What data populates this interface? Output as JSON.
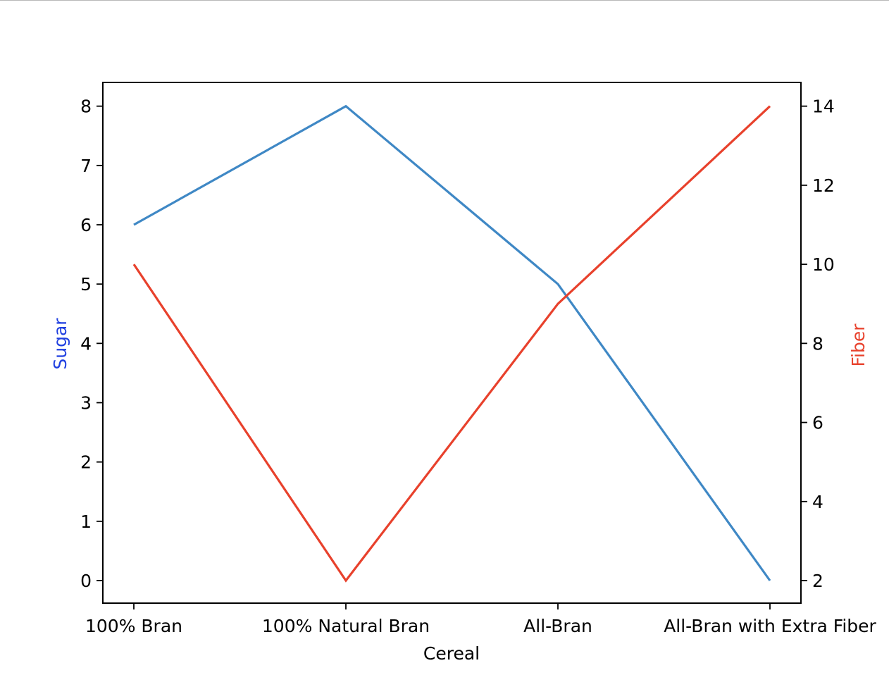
{
  "chart_data": {
    "type": "line",
    "categories": [
      "100% Bran",
      "100% Natural Bran",
      "All-Bran",
      "All-Bran with Extra Fiber"
    ],
    "xlabel": "Cereal",
    "series": [
      {
        "name": "Sugar",
        "axis": "left",
        "color": "#3f88c5",
        "values": [
          6,
          8,
          5,
          0
        ]
      },
      {
        "name": "Fiber",
        "axis": "right",
        "color": "#e8412c",
        "values": [
          10,
          2,
          9,
          14
        ]
      }
    ],
    "left_axis": {
      "label": "Sugar",
      "label_color": "#1f3fe0",
      "ylim": [
        -0.38,
        8.4
      ],
      "ticks": [
        0,
        1,
        2,
        3,
        4,
        5,
        6,
        7,
        8
      ]
    },
    "right_axis": {
      "label": "Fiber",
      "label_color": "#e8412c",
      "ylim": [
        1.43,
        14.6
      ],
      "ticks": [
        2,
        4,
        6,
        8,
        10,
        12,
        14
      ]
    },
    "grid": false,
    "legend": "none"
  }
}
